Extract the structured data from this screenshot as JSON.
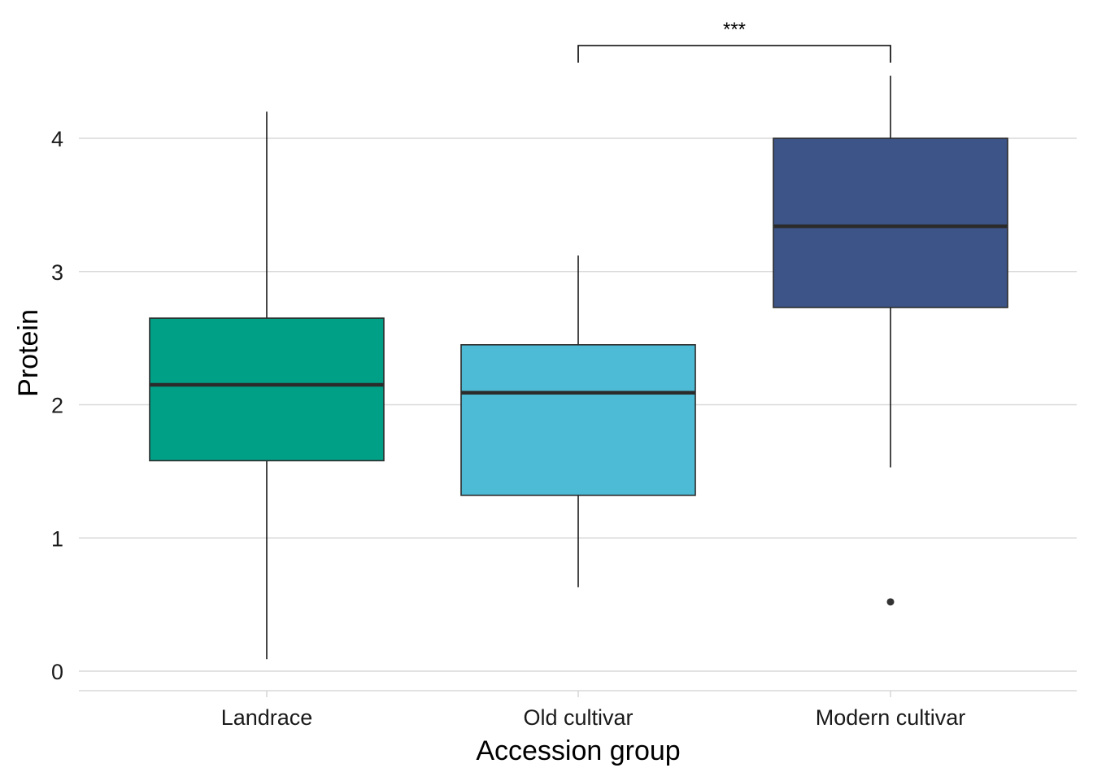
{
  "chart_data": {
    "type": "boxplot",
    "xlabel": "Accession group",
    "ylabel": "Protein",
    "ylim": [
      0,
      4.8
    ],
    "yticks": [
      0,
      1,
      2,
      3,
      4
    ],
    "grid": "horizontal",
    "legend": "none",
    "categories": [
      "Landrace",
      "Old cultivar",
      "Modern cultivar"
    ],
    "boxes": [
      {
        "category": "Landrace",
        "min": 0.09,
        "q1": 1.58,
        "median": 2.15,
        "q3": 2.65,
        "max": 4.2,
        "outliers": [],
        "color": "#00A087"
      },
      {
        "category": "Old cultivar",
        "min": 0.63,
        "q1": 1.32,
        "median": 2.09,
        "q3": 2.45,
        "max": 3.12,
        "outliers": [],
        "color": "#4DBBD5"
      },
      {
        "category": "Modern cultivar",
        "min": 1.53,
        "q1": 2.73,
        "median": 3.34,
        "q3": 4.0,
        "max": 4.47,
        "outliers": [
          0.52
        ],
        "color": "#3C5488"
      }
    ],
    "annotations": [
      {
        "type": "significance",
        "from": "Old cultivar",
        "to": "Modern cultivar",
        "label": "***"
      }
    ]
  }
}
